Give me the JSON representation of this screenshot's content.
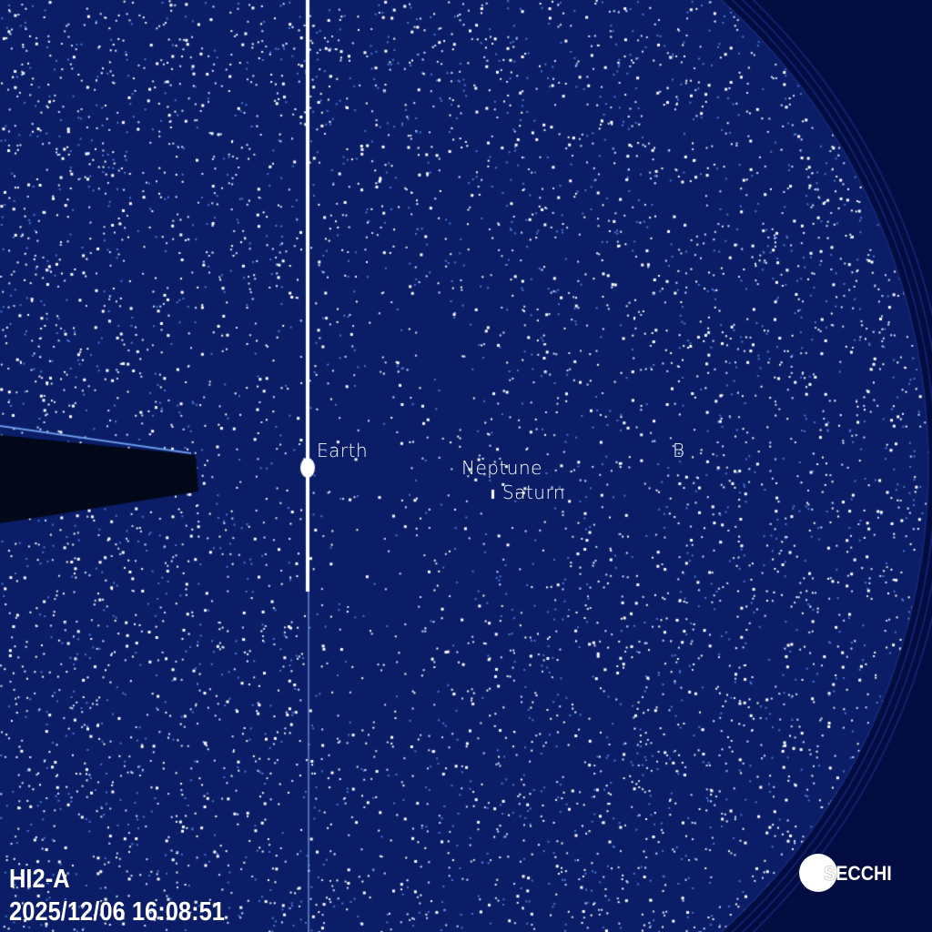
{
  "image": {
    "instrument": "HI2-A",
    "timestamp": "2025/12/06 16:08:51",
    "logo_text": "SECCHI",
    "labels": {
      "earth": "Earth",
      "neptune": "Neptune",
      "saturn": "Saturn",
      "b": "B"
    },
    "colors": {
      "background": "#020c40",
      "field": "#0b1d66",
      "stars": "#cfe6ff",
      "text": "#ffffff"
    }
  }
}
